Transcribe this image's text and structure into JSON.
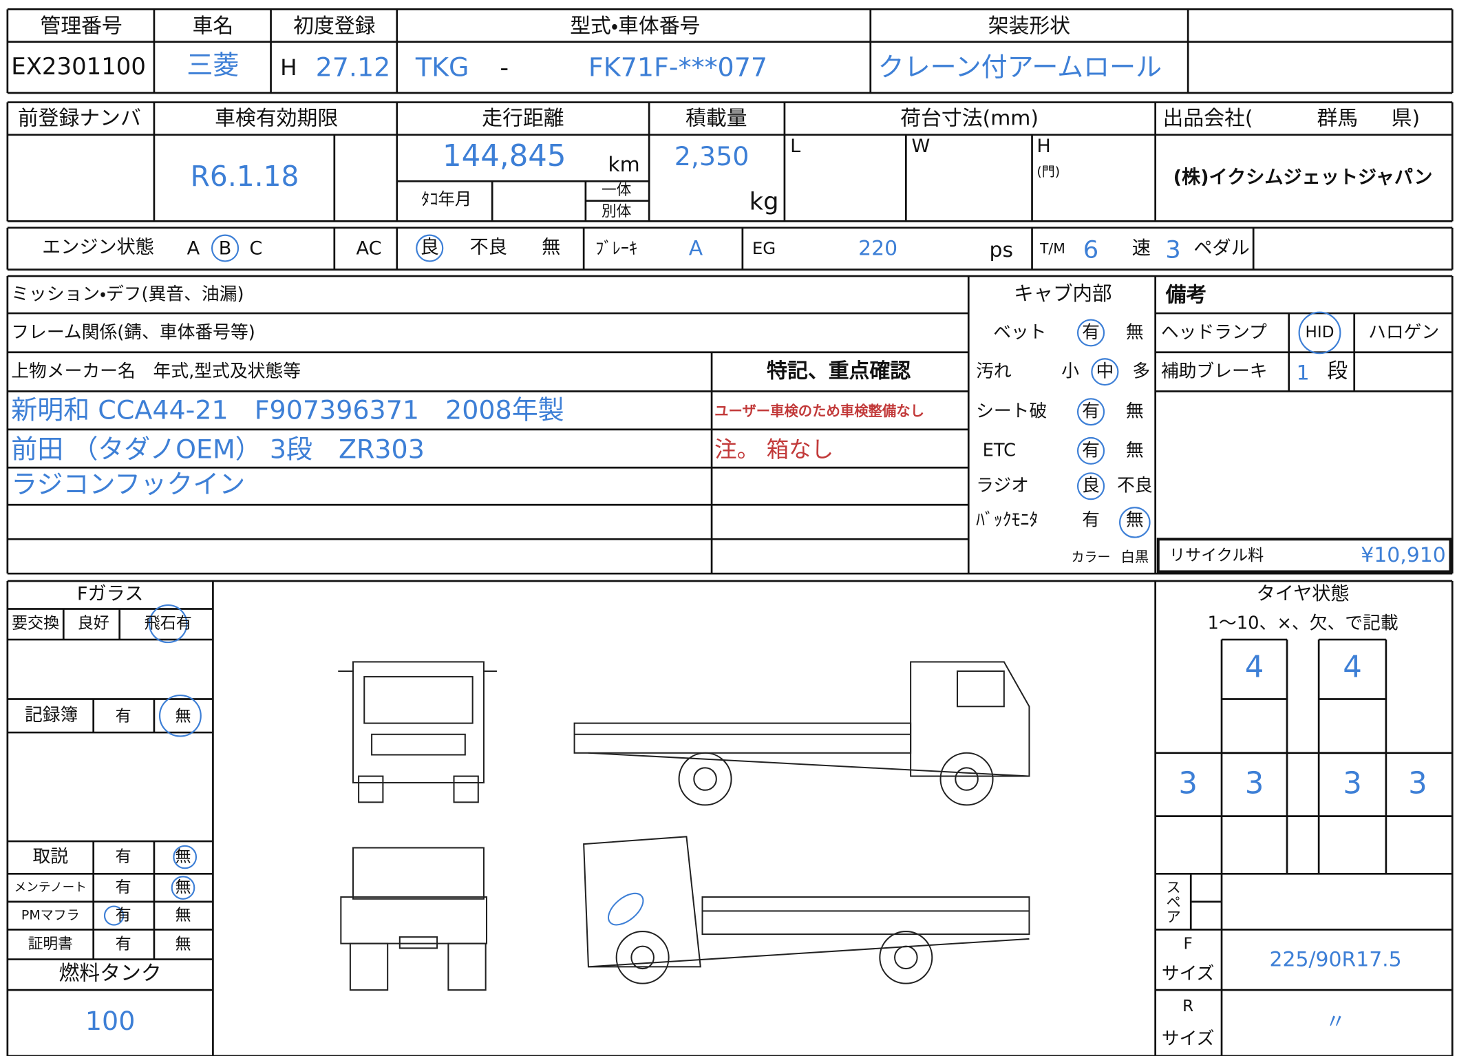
{
  "header": {
    "labels": [
      "管理番号",
      "車名",
      "初度登録",
      "型式・車体番号",
      "架装形状"
    ],
    "kanri_no": "EX2301100",
    "car_name": "三菱",
    "reg_era": "H",
    "reg_date": "27.12",
    "model_prefix": "TKG",
    "model_dash": "-",
    "chassis_no": "FK71F-***077",
    "body_type": "クレーン付アームロール"
  },
  "row2": {
    "labels": [
      "前登録ナンバ",
      "車検有効期限",
      "走行距離",
      "積載量",
      "荷台寸法(mm)"
    ],
    "seller_prefix": "出品会社(",
    "seller_pref": "群馬",
    "seller_suffix": "県)",
    "inspection_expiry": "R6.1.18",
    "mileage": "144,845",
    "mileage_unit": "km",
    "tacho_label": "ﾀｺ年月",
    "integrated": "一体",
    "separate": "別体",
    "load_capacity": "2,350",
    "load_unit": "kg",
    "dims": {
      "L": "L",
      "W": "W",
      "H": "H",
      "H_note": "(門)"
    },
    "seller": "(株)イクシムジェットジャパン"
  },
  "row3": {
    "engine_label": "エンジン状態",
    "engine_grades": [
      "A",
      "B",
      "C"
    ],
    "ac_label": "AC",
    "ac_options": [
      "良",
      "不良",
      "無"
    ],
    "brake_label": "ﾌﾞﾚｰｷ",
    "brake_value": "A",
    "eg_label": "EG",
    "eg_value": "220",
    "eg_unit": "ps",
    "tm_label": "T/M",
    "tm_speed": "6",
    "speed_label": "速",
    "pedal_count": "3",
    "pedal_label": "ペダル"
  },
  "notes": {
    "mission": "ミッション・デフ(異音、油漏)",
    "frame": "フレーム関係(錆、車体番号等)",
    "body_maker_label": "上物メーカー名　年式,型式及状態等",
    "special_label": "特記、重点確認",
    "body_lines": [
      "新明和 CCA44-21　F907396371　2008年製",
      "前田 （タダノOEM） 3段　ZR303",
      "ラジコンフックイン"
    ],
    "special_lines": [
      "ユーザー車検のため車検整備なし",
      "注。 箱なし"
    ]
  },
  "cab": {
    "title": "キャブ内部",
    "rows": [
      {
        "label": "ベット",
        "options": [
          "有",
          "無"
        ]
      },
      {
        "label": "汚れ",
        "options": [
          "小",
          "中",
          "多"
        ]
      },
      {
        "label": "シート破",
        "options": [
          "有",
          "無"
        ]
      },
      {
        "label": "ETC",
        "options": [
          "有",
          "無"
        ]
      },
      {
        "label": "ラジオ",
        "options": [
          "良",
          "不良"
        ]
      },
      {
        "label": "ﾊﾞｯｸﾓﾆﾀ",
        "options": [
          "有",
          "無"
        ]
      },
      {
        "label": "カラー",
        "options": [
          "白黒"
        ]
      }
    ]
  },
  "remarks": {
    "title": "備考",
    "headlamp_label": "ヘッドランプ",
    "headlamp_options": [
      "HID",
      "ハロゲン"
    ],
    "aux_brake_label": "補助ブレーキ",
    "aux_brake_value": "1",
    "aux_brake_unit": "段",
    "recycle_label": "リサイクル料",
    "recycle_fee": "¥10,910"
  },
  "records": {
    "fglass_label": "Fガラス",
    "fglass_options": [
      "要交換",
      "良好",
      "飛石有"
    ],
    "record_book": {
      "label": "記録簿",
      "options": [
        "有",
        "無"
      ]
    },
    "items": [
      {
        "label": "取説",
        "options": [
          "有",
          "無"
        ]
      },
      {
        "label": "メンテノート",
        "options": [
          "有",
          "無"
        ]
      },
      {
        "label": "PMマフラ",
        "options": [
          "有",
          "無"
        ]
      },
      {
        "label": "証明書",
        "options": [
          "有",
          "無"
        ]
      }
    ],
    "fuel_label": "燃料タンク",
    "fuel_value": "100"
  },
  "tires": {
    "title": "タイヤ状態",
    "instruction": "1～10、×、欠、で記載",
    "front": [
      "4",
      "4"
    ],
    "rear": [
      "3",
      "3",
      "3",
      "3"
    ],
    "spare_label": "スペア",
    "front_label": "F",
    "front_size_label": "サイズ",
    "front_size": "225/90R17.5",
    "rear_label": "R",
    "rear_size_label": "サイズ",
    "rear_size": "〃"
  }
}
